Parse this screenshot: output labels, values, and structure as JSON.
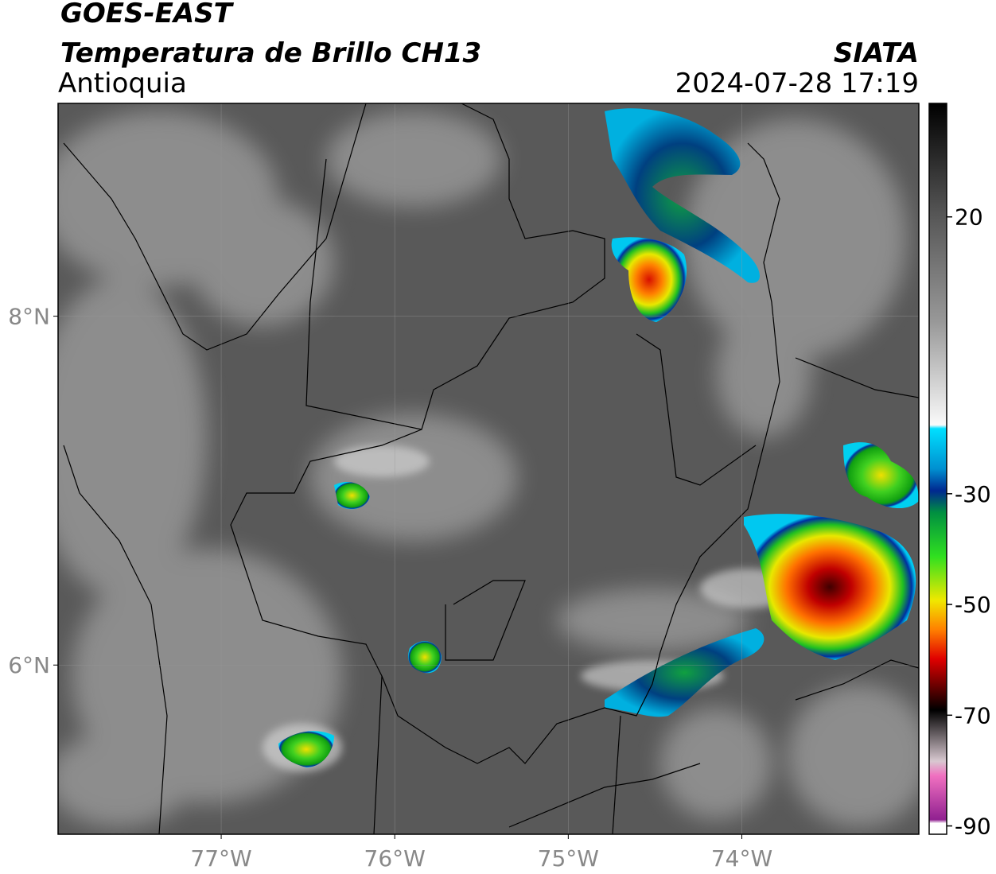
{
  "header": {
    "title": "GOES-EAST",
    "subtitle": "Temperatura de Brillo CH13",
    "region": "Antioquia",
    "source": "SIATA",
    "datetime": "2024-07-28 17:19"
  },
  "map": {
    "xlim": [
      -77.94,
      -72.98
    ],
    "ylim": [
      5.03,
      9.22
    ],
    "xticks": [
      {
        "value": -77,
        "label": "77°W"
      },
      {
        "value": -76,
        "label": "76°W"
      },
      {
        "value": -75,
        "label": "75°W"
      },
      {
        "value": -74,
        "label": "74°W"
      }
    ],
    "yticks": [
      {
        "value": 8,
        "label": "8°N"
      },
      {
        "value": 6,
        "label": "6°N"
      }
    ],
    "grid": true
  },
  "colorbar": {
    "lim": [
      -91.5,
      40.5
    ],
    "ticks": [
      20,
      -30,
      -50,
      -70,
      -90
    ]
  }
}
